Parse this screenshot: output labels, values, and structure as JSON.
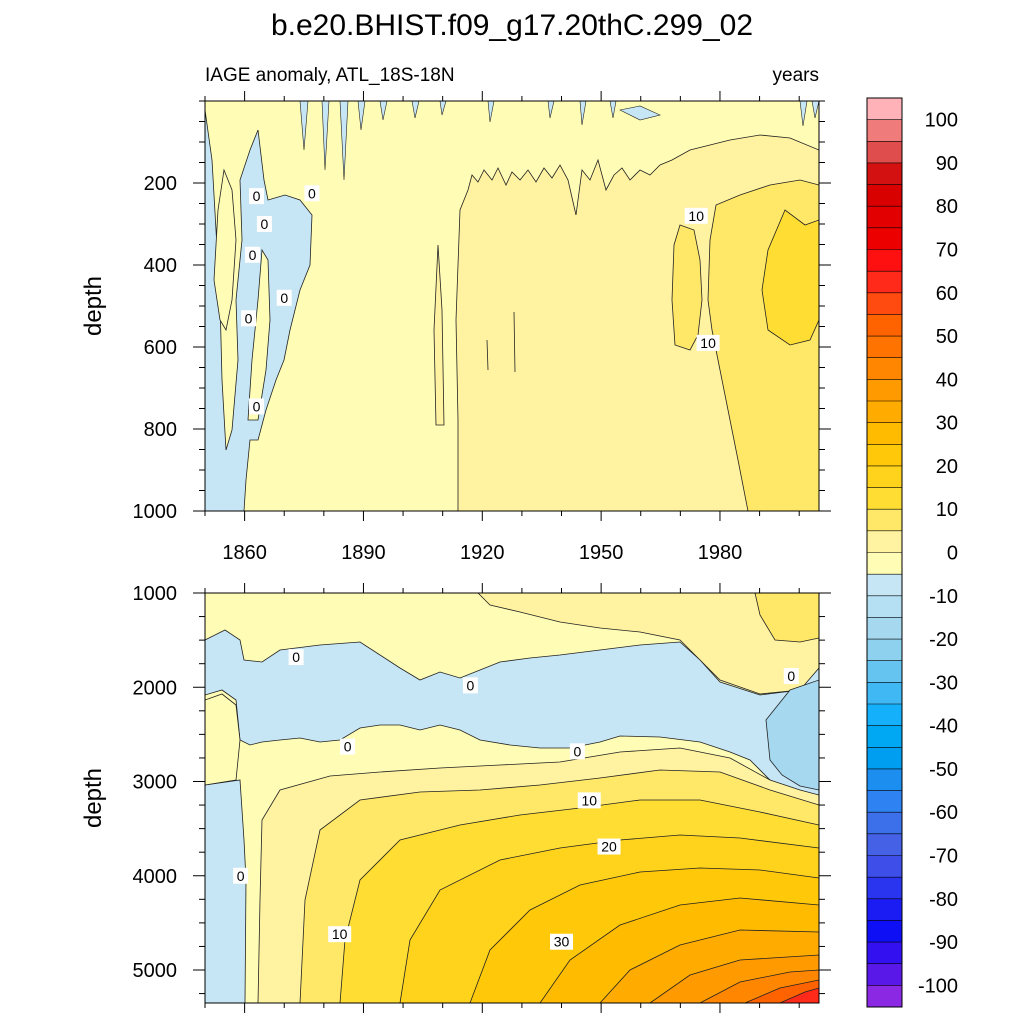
{
  "figure": {
    "title": "b.e20.BHIST.f09_g17.20thC.299_02",
    "subtitle_left": "IAGE anomaly, ATL_18S-18N",
    "subtitle_right": "years"
  },
  "chart_data": [
    {
      "type": "heatmap",
      "panel": "upper",
      "variable": "IAGE anomaly",
      "region": "ATL_18S-18N",
      "units": "years",
      "xlabel": "",
      "ylabel": "depth",
      "xlim": [
        1850,
        2005
      ],
      "ylim": [
        1000,
        0
      ],
      "x_ticks": [
        1860,
        1890,
        1920,
        1950,
        1980
      ],
      "y_ticks": [
        200,
        400,
        600,
        800,
        1000
      ],
      "contour_labels": [
        {
          "x": 1861,
          "y": 530,
          "text": "0"
        },
        {
          "x": 1863,
          "y": 232,
          "text": "0"
        },
        {
          "x": 1865,
          "y": 300,
          "text": "0"
        },
        {
          "x": 1862,
          "y": 375,
          "text": "0"
        },
        {
          "x": 1870,
          "y": 480,
          "text": "0"
        },
        {
          "x": 1877,
          "y": 225,
          "text": "0"
        },
        {
          "x": 1863,
          "y": 745,
          "text": "0"
        },
        {
          "x": 1974,
          "y": 280,
          "text": "10"
        },
        {
          "x": 1977,
          "y": 590,
          "text": "10"
        }
      ]
    },
    {
      "type": "heatmap",
      "panel": "lower",
      "variable": "IAGE anomaly",
      "region": "ATL_18S-18N",
      "units": "years",
      "xlabel": "",
      "ylabel": "depth",
      "xlim": [
        1850,
        2005
      ],
      "ylim": [
        5350,
        1000
      ],
      "x_ticks": [
        1860,
        1890,
        1920,
        1950,
        1980
      ],
      "y_ticks": [
        1000,
        2000,
        3000,
        4000,
        5000
      ],
      "contour_labels": [
        {
          "x": 1873,
          "y": 1680,
          "text": "0"
        },
        {
          "x": 1917,
          "y": 1980,
          "text": "0"
        },
        {
          "x": 1998,
          "y": 1880,
          "text": "0"
        },
        {
          "x": 1886,
          "y": 2630,
          "text": "0"
        },
        {
          "x": 1944,
          "y": 2680,
          "text": "0"
        },
        {
          "x": 1859,
          "y": 4000,
          "text": "0"
        },
        {
          "x": 1947,
          "y": 3200,
          "text": "10"
        },
        {
          "x": 1952,
          "y": 3690,
          "text": "20"
        },
        {
          "x": 1940,
          "y": 4700,
          "text": "30"
        },
        {
          "x": 1884,
          "y": 4620,
          "text": "10"
        }
      ]
    }
  ],
  "colorbar": {
    "labels": [
      "100",
      "90",
      "80",
      "70",
      "60",
      "50",
      "40",
      "30",
      "20",
      "10",
      "0",
      "-10",
      "-20",
      "-30",
      "-40",
      "-50",
      "-60",
      "-70",
      "-80",
      "-90",
      "-100"
    ],
    "levels_top_to_bottom": [
      100,
      95,
      90,
      85,
      80,
      75,
      70,
      65,
      60,
      55,
      50,
      45,
      40,
      35,
      30,
      25,
      20,
      15,
      10,
      5,
      0,
      -5,
      -10,
      -15,
      -20,
      -25,
      -30,
      -35,
      -40,
      -45,
      -50,
      -55,
      -60,
      -65,
      -70,
      -75,
      -80,
      -85,
      -90,
      -95,
      -100
    ],
    "colors_top_to_bottom": [
      "#ffb3b8",
      "#f07b7b",
      "#e04d4d",
      "#d41111",
      "#d90000",
      "#e30000",
      "#ec0000",
      "#ff1010",
      "#ff2a1a",
      "#ff4a10",
      "#ff6300",
      "#ff7400",
      "#ff8600",
      "#ff9a00",
      "#ffab00",
      "#ffbb00",
      "#ffc90a",
      "#ffd21c",
      "#ffdd33",
      "#ffe767",
      "#fff2a0",
      "#fffcb5",
      "#c6e6f5",
      "#b5dff2",
      "#a6d9ef",
      "#8dd1ee",
      "#66c4f0",
      "#3fb8f4",
      "#15b0fb",
      "#00a8f4",
      "#009ef0",
      "#1c8ef0",
      "#2f82f2",
      "#3b70ea",
      "#4561e6",
      "#3e4ee8",
      "#2a35ef",
      "#1a1cf3",
      "#0f0ff5",
      "#3210f0",
      "#5a18e8",
      "#8a28e4"
    ]
  }
}
